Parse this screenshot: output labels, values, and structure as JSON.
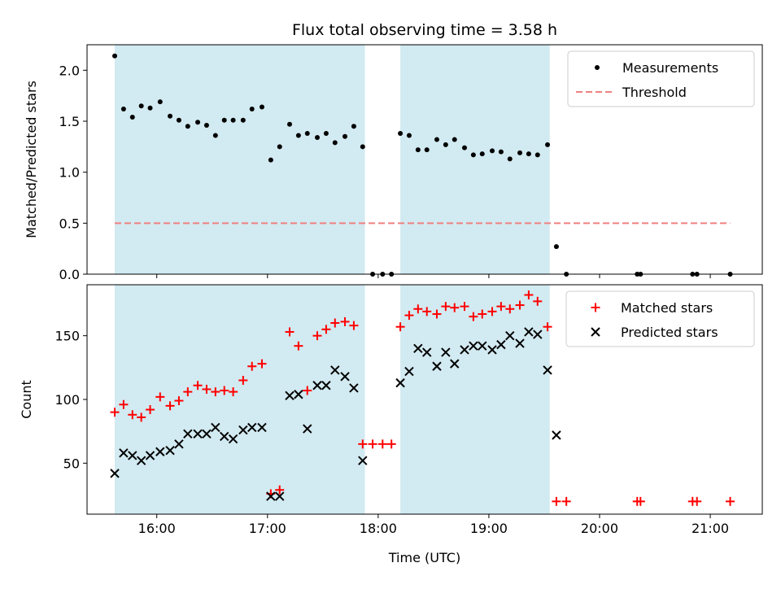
{
  "chart_data": [
    {
      "type": "scatter",
      "title": "Flux total observing time = 3.58 h",
      "xlabel": "",
      "ylabel": "Matched/Predicted stars",
      "xlim": [
        15.37,
        21.47
      ],
      "ylim": [
        0,
        2.25
      ],
      "yticks": [
        0.0,
        0.5,
        1.0,
        1.5,
        2.0
      ],
      "ytick_labels": [
        "0.0",
        "0.5",
        "1.0",
        "1.5",
        "2.0"
      ],
      "shaded_regions": [
        [
          15.62,
          17.88
        ],
        [
          18.2,
          19.55
        ]
      ],
      "shade_color": "#add8e6",
      "legend_position": "top-right",
      "series": [
        {
          "name": "Measurements",
          "color": "#000000",
          "marker": "dot",
          "x": [
            15.62,
            15.7,
            15.78,
            15.86,
            15.94,
            16.03,
            16.12,
            16.2,
            16.28,
            16.37,
            16.45,
            16.53,
            16.61,
            16.69,
            16.78,
            16.86,
            16.95,
            17.03,
            17.11,
            17.2,
            17.28,
            17.36,
            17.45,
            17.53,
            17.61,
            17.7,
            17.78,
            17.86,
            17.95,
            18.04,
            18.12,
            18.2,
            18.28,
            18.36,
            18.44,
            18.53,
            18.61,
            18.69,
            18.78,
            18.86,
            18.94,
            19.03,
            19.11,
            19.19,
            19.28,
            19.36,
            19.44,
            19.53,
            19.61,
            19.7,
            20.34,
            20.37,
            20.84,
            20.88,
            21.18
          ],
          "y": [
            2.14,
            1.62,
            1.54,
            1.65,
            1.63,
            1.69,
            1.55,
            1.51,
            1.45,
            1.49,
            1.46,
            1.36,
            1.51,
            1.51,
            1.51,
            1.62,
            1.64,
            1.12,
            1.25,
            1.47,
            1.36,
            1.38,
            1.34,
            1.38,
            1.29,
            1.35,
            1.45,
            1.25,
            0.0,
            0.0,
            0.0,
            1.38,
            1.36,
            1.22,
            1.22,
            1.32,
            1.27,
            1.32,
            1.24,
            1.17,
            1.18,
            1.21,
            1.2,
            1.13,
            1.19,
            1.18,
            1.17,
            1.27,
            0.27,
            0.0,
            0.0,
            0.0,
            0.0,
            0.0,
            0.0
          ]
        },
        {
          "name": "Threshold",
          "color": "#f08080",
          "style": "dashed",
          "x": [
            15.62,
            21.18
          ],
          "y": [
            0.5,
            0.5
          ]
        }
      ]
    },
    {
      "type": "scatter",
      "title": "",
      "xlabel": "Time (UTC)",
      "ylabel": "Count",
      "xlim": [
        15.37,
        21.47
      ],
      "ylim": [
        10,
        190
      ],
      "yticks": [
        50,
        100,
        150
      ],
      "ytick_labels": [
        "50",
        "100",
        "150"
      ],
      "xticks": [
        16,
        17,
        18,
        19,
        20,
        21
      ],
      "xtick_labels": [
        "16:00",
        "17:00",
        "18:00",
        "19:00",
        "20:00",
        "21:00"
      ],
      "shaded_regions": [
        [
          15.62,
          17.88
        ],
        [
          18.2,
          19.55
        ]
      ],
      "shade_color": "#add8e6",
      "legend_position": "top-right",
      "series": [
        {
          "name": "Matched stars",
          "color": "#ff0000",
          "marker": "plus",
          "x": [
            15.62,
            15.7,
            15.78,
            15.86,
            15.94,
            16.03,
            16.12,
            16.2,
            16.28,
            16.37,
            16.45,
            16.53,
            16.61,
            16.69,
            16.78,
            16.86,
            16.95,
            17.03,
            17.11,
            17.2,
            17.28,
            17.36,
            17.45,
            17.53,
            17.61,
            17.7,
            17.78,
            17.86,
            17.95,
            18.04,
            18.12,
            18.2,
            18.28,
            18.36,
            18.44,
            18.53,
            18.61,
            18.69,
            18.78,
            18.86,
            18.94,
            19.03,
            19.11,
            19.19,
            19.28,
            19.36,
            19.44,
            19.53,
            19.61,
            19.7,
            20.34,
            20.37,
            20.84,
            20.88,
            21.18
          ],
          "y": [
            90,
            96,
            88,
            86,
            92,
            102,
            95,
            99,
            106,
            111,
            108,
            106,
            107,
            106,
            115,
            126,
            128,
            26,
            29,
            153,
            142,
            107,
            150,
            155,
            160,
            161,
            158,
            65,
            65,
            65,
            65,
            157,
            166,
            171,
            169,
            167,
            173,
            172,
            173,
            165,
            167,
            169,
            173,
            171,
            174,
            182,
            177,
            157,
            20,
            20,
            20,
            20,
            20,
            20,
            20
          ]
        },
        {
          "name": "Predicted stars",
          "color": "#000000",
          "marker": "x",
          "x": [
            15.62,
            15.7,
            15.78,
            15.86,
            15.94,
            16.03,
            16.12,
            16.2,
            16.28,
            16.37,
            16.45,
            16.53,
            16.61,
            16.69,
            16.78,
            16.86,
            16.95,
            17.03,
            17.11,
            17.2,
            17.28,
            17.36,
            17.45,
            17.53,
            17.61,
            17.7,
            17.78,
            17.86,
            18.2,
            18.28,
            18.36,
            18.44,
            18.53,
            18.61,
            18.69,
            18.78,
            18.86,
            18.94,
            19.03,
            19.11,
            19.19,
            19.28,
            19.36,
            19.44,
            19.53,
            19.61
          ],
          "y": [
            42,
            58,
            56,
            52,
            56,
            59,
            60,
            65,
            73,
            73,
            73,
            78,
            71,
            69,
            76,
            78,
            78,
            24,
            24,
            103,
            104,
            77,
            111,
            111,
            123,
            118,
            109,
            52,
            113,
            122,
            140,
            137,
            126,
            137,
            128,
            139,
            142,
            142,
            139,
            143,
            150,
            144,
            153,
            151,
            123,
            72
          ]
        }
      ]
    }
  ]
}
